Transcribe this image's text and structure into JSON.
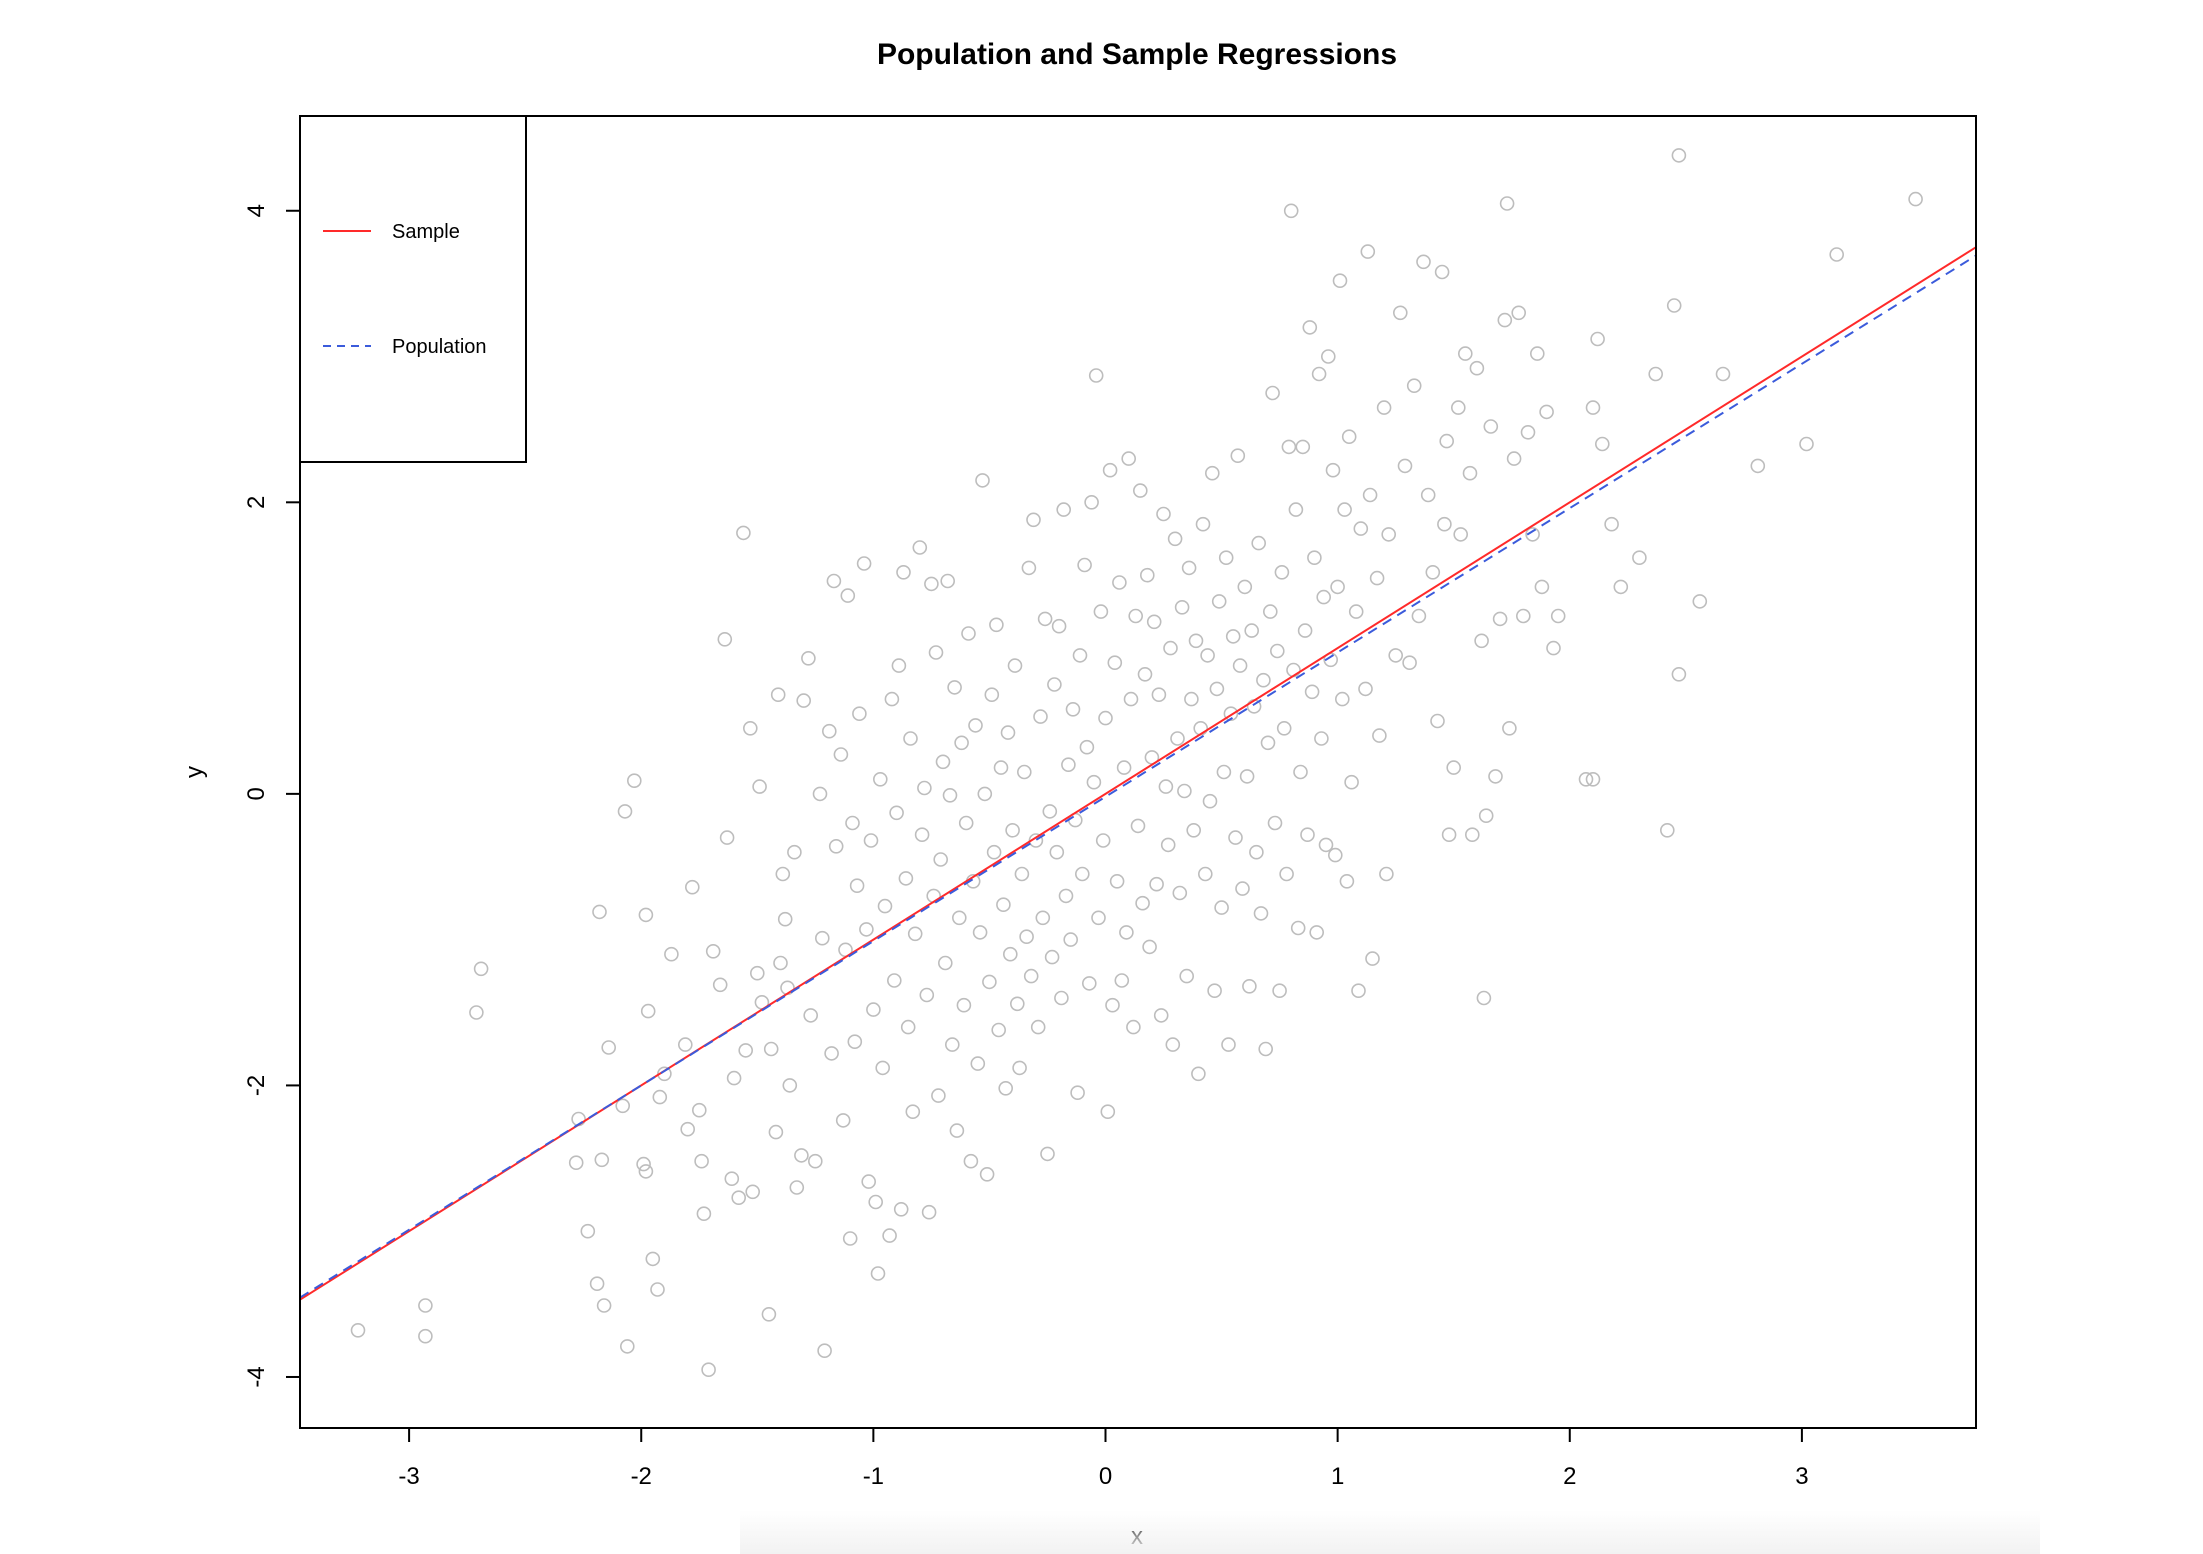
{
  "chart_data": {
    "type": "scatter",
    "title": "Population and Sample Regressions",
    "xlabel": "x",
    "ylabel": "y",
    "xlim": [
      -3.47,
      3.75
    ],
    "ylim": [
      -4.35,
      4.65
    ],
    "x_ticks": [
      -3,
      -2,
      -1,
      0,
      1,
      2,
      3
    ],
    "x_tick_labels": [
      "-3",
      "-2",
      "-1",
      "0",
      "1",
      "2",
      "3"
    ],
    "y_ticks": [
      -4,
      -2,
      0,
      2,
      4
    ],
    "y_tick_labels": [
      "-4",
      "-2",
      "0",
      "2",
      "4"
    ],
    "grid": false,
    "legend_position": "top-left",
    "point_color": "#bdbdbd",
    "points": [
      [
        -3.22,
        -3.68
      ],
      [
        -2.93,
        -3.51
      ],
      [
        -2.93,
        -3.72
      ],
      [
        -2.69,
        -1.2
      ],
      [
        -2.71,
        -1.5
      ],
      [
        -2.28,
        -2.53
      ],
      [
        -2.27,
        -2.23
      ],
      [
        -2.23,
        -3.0
      ],
      [
        -2.19,
        -3.36
      ],
      [
        -2.17,
        -2.51
      ],
      [
        -2.16,
        -3.51
      ],
      [
        -2.14,
        -1.74
      ],
      [
        -2.18,
        -0.81
      ],
      [
        -2.08,
        -2.14
      ],
      [
        -2.06,
        -3.79
      ],
      [
        -2.07,
        -0.12
      ],
      [
        -2.03,
        0.09
      ],
      [
        -1.99,
        -2.54
      ],
      [
        -1.98,
        -2.59
      ],
      [
        -1.98,
        -0.83
      ],
      [
        -1.97,
        -1.49
      ],
      [
        -1.95,
        -3.19
      ],
      [
        -1.93,
        -3.4
      ],
      [
        -1.92,
        -2.08
      ],
      [
        -1.9,
        -1.92
      ],
      [
        -1.87,
        -1.1
      ],
      [
        -1.81,
        -1.72
      ],
      [
        -1.8,
        -2.3
      ],
      [
        -1.78,
        -0.64
      ],
      [
        -1.75,
        -2.17
      ],
      [
        -1.74,
        -2.52
      ],
      [
        -1.73,
        -2.88
      ],
      [
        -1.71,
        -3.95
      ],
      [
        -1.69,
        -1.08
      ],
      [
        -1.66,
        -1.31
      ],
      [
        -1.64,
        1.06
      ],
      [
        -1.63,
        -0.3
      ],
      [
        -1.61,
        -2.64
      ],
      [
        -1.6,
        -1.95
      ],
      [
        -1.58,
        -2.77
      ],
      [
        -1.56,
        1.79
      ],
      [
        -1.55,
        -1.76
      ],
      [
        -1.53,
        0.45
      ],
      [
        -1.52,
        -2.73
      ],
      [
        -1.5,
        -1.23
      ],
      [
        -1.49,
        0.05
      ],
      [
        -1.48,
        -1.43
      ],
      [
        -1.45,
        -3.57
      ],
      [
        -1.44,
        -1.75
      ],
      [
        -1.42,
        -2.32
      ],
      [
        -1.41,
        0.68
      ],
      [
        -1.4,
        -1.16
      ],
      [
        -1.39,
        -0.55
      ],
      [
        -1.38,
        -0.86
      ],
      [
        -1.37,
        -1.33
      ],
      [
        -1.36,
        -2.0
      ],
      [
        -1.34,
        -0.4
      ],
      [
        -1.33,
        -2.7
      ],
      [
        -1.31,
        -2.48
      ],
      [
        -1.3,
        0.64
      ],
      [
        -1.28,
        0.93
      ],
      [
        -1.27,
        -1.52
      ],
      [
        -1.25,
        -2.52
      ],
      [
        -1.23,
        0.0
      ],
      [
        -1.22,
        -0.99
      ],
      [
        -1.21,
        -3.82
      ],
      [
        -1.19,
        0.43
      ],
      [
        -1.18,
        -1.78
      ],
      [
        -1.17,
        1.46
      ],
      [
        -1.16,
        -0.36
      ],
      [
        -1.14,
        0.27
      ],
      [
        -1.13,
        -2.24
      ],
      [
        -1.12,
        -1.07
      ],
      [
        -1.11,
        1.36
      ],
      [
        -1.1,
        -3.05
      ],
      [
        -1.09,
        -0.2
      ],
      [
        -1.08,
        -1.7
      ],
      [
        -1.07,
        -0.63
      ],
      [
        -1.06,
        0.55
      ],
      [
        -1.04,
        1.58
      ],
      [
        -1.03,
        -0.93
      ],
      [
        -1.02,
        -2.66
      ],
      [
        -1.01,
        -0.32
      ],
      [
        -1.0,
        -1.48
      ],
      [
        -0.99,
        -2.8
      ],
      [
        -0.98,
        -3.29
      ],
      [
        -0.97,
        0.1
      ],
      [
        -0.96,
        -1.88
      ],
      [
        -0.95,
        -0.77
      ],
      [
        -0.93,
        -3.03
      ],
      [
        -0.92,
        0.65
      ],
      [
        -0.91,
        -1.28
      ],
      [
        -0.9,
        -0.13
      ],
      [
        -0.89,
        0.88
      ],
      [
        -0.88,
        -2.85
      ],
      [
        -0.87,
        1.52
      ],
      [
        -0.86,
        -0.58
      ],
      [
        -0.85,
        -1.6
      ],
      [
        -0.84,
        0.38
      ],
      [
        -0.83,
        -2.18
      ],
      [
        -0.82,
        -0.96
      ],
      [
        -0.8,
        1.69
      ],
      [
        -0.79,
        -0.28
      ],
      [
        -0.78,
        0.04
      ],
      [
        -0.77,
        -1.38
      ],
      [
        -0.76,
        -2.87
      ],
      [
        -0.75,
        1.44
      ],
      [
        -0.74,
        -0.7
      ],
      [
        -0.73,
        0.97
      ],
      [
        -0.72,
        -2.07
      ],
      [
        -0.71,
        -0.45
      ],
      [
        -0.7,
        0.22
      ],
      [
        -0.69,
        -1.16
      ],
      [
        -0.68,
        1.46
      ],
      [
        -0.67,
        -0.01
      ],
      [
        -0.66,
        -1.72
      ],
      [
        -0.65,
        0.73
      ],
      [
        -0.64,
        -2.31
      ],
      [
        -0.63,
        -0.85
      ],
      [
        -0.62,
        0.35
      ],
      [
        -0.61,
        -1.45
      ],
      [
        -0.6,
        -0.2
      ],
      [
        -0.59,
        1.1
      ],
      [
        -0.58,
        -2.52
      ],
      [
        -0.57,
        -0.6
      ],
      [
        -0.56,
        0.47
      ],
      [
        -0.55,
        -1.85
      ],
      [
        -0.54,
        -0.95
      ],
      [
        -0.53,
        2.15
      ],
      [
        -0.52,
        0.0
      ],
      [
        -0.51,
        -2.61
      ],
      [
        -0.5,
        -1.29
      ],
      [
        -0.49,
        0.68
      ],
      [
        -0.48,
        -0.4
      ],
      [
        -0.47,
        1.16
      ],
      [
        -0.46,
        -1.62
      ],
      [
        -0.45,
        0.18
      ],
      [
        -0.44,
        -0.76
      ],
      [
        -0.43,
        -2.02
      ],
      [
        -0.42,
        0.42
      ],
      [
        -0.41,
        -1.1
      ],
      [
        -0.4,
        -0.25
      ],
      [
        -0.39,
        0.88
      ],
      [
        -0.38,
        -1.44
      ],
      [
        -0.37,
        -1.88
      ],
      [
        -0.36,
        -0.55
      ],
      [
        -0.35,
        0.15
      ],
      [
        -0.34,
        -0.98
      ],
      [
        -0.33,
        1.55
      ],
      [
        -0.32,
        -1.25
      ],
      [
        -0.31,
        1.88
      ],
      [
        -0.3,
        -0.32
      ],
      [
        -0.29,
        -1.6
      ],
      [
        -0.28,
        0.53
      ],
      [
        -0.27,
        -0.85
      ],
      [
        -0.26,
        1.2
      ],
      [
        -0.25,
        -2.47
      ],
      [
        -0.24,
        -0.12
      ],
      [
        -0.23,
        -1.12
      ],
      [
        -0.22,
        0.75
      ],
      [
        -0.21,
        -0.4
      ],
      [
        -0.2,
        1.15
      ],
      [
        -0.19,
        -1.4
      ],
      [
        -0.18,
        1.95
      ],
      [
        -0.17,
        -0.7
      ],
      [
        -0.16,
        0.2
      ],
      [
        -0.15,
        -1.0
      ],
      [
        -0.14,
        0.58
      ],
      [
        -0.13,
        -0.18
      ],
      [
        -0.12,
        -2.05
      ],
      [
        -0.11,
        0.95
      ],
      [
        -0.1,
        -0.55
      ],
      [
        -0.09,
        1.57
      ],
      [
        -0.08,
        0.32
      ],
      [
        -0.07,
        -1.3
      ],
      [
        -0.06,
        2.0
      ],
      [
        -0.05,
        0.08
      ],
      [
        -0.04,
        2.87
      ],
      [
        -0.03,
        -0.85
      ],
      [
        -0.02,
        1.25
      ],
      [
        -0.01,
        -0.32
      ],
      [
        0.0,
        0.52
      ],
      [
        0.01,
        -2.18
      ],
      [
        0.02,
        2.22
      ],
      [
        0.03,
        -1.45
      ],
      [
        0.04,
        0.9
      ],
      [
        0.05,
        -0.6
      ],
      [
        0.06,
        1.45
      ],
      [
        0.07,
        -1.28
      ],
      [
        0.08,
        0.18
      ],
      [
        0.09,
        -0.95
      ],
      [
        0.1,
        2.3
      ],
      [
        0.11,
        0.65
      ],
      [
        0.12,
        -1.6
      ],
      [
        0.13,
        1.22
      ],
      [
        0.14,
        -0.22
      ],
      [
        0.15,
        2.08
      ],
      [
        0.16,
        -0.75
      ],
      [
        0.17,
        0.82
      ],
      [
        0.18,
        1.5
      ],
      [
        0.19,
        -1.05
      ],
      [
        0.2,
        0.25
      ],
      [
        0.21,
        1.18
      ],
      [
        0.22,
        -0.62
      ],
      [
        0.23,
        0.68
      ],
      [
        0.24,
        -1.52
      ],
      [
        0.25,
        1.92
      ],
      [
        0.26,
        0.05
      ],
      [
        0.27,
        -0.35
      ],
      [
        0.28,
        1.0
      ],
      [
        0.29,
        -1.72
      ],
      [
        0.3,
        1.75
      ],
      [
        0.31,
        0.38
      ],
      [
        0.32,
        -0.68
      ],
      [
        0.33,
        1.28
      ],
      [
        0.34,
        0.02
      ],
      [
        0.35,
        -1.25
      ],
      [
        0.36,
        1.55
      ],
      [
        0.37,
        0.65
      ],
      [
        0.38,
        -0.25
      ],
      [
        0.39,
        1.05
      ],
      [
        0.4,
        -1.92
      ],
      [
        0.41,
        0.45
      ],
      [
        0.42,
        1.85
      ],
      [
        0.43,
        -0.55
      ],
      [
        0.44,
        0.95
      ],
      [
        0.45,
        -0.05
      ],
      [
        0.46,
        2.2
      ],
      [
        0.47,
        -1.35
      ],
      [
        0.48,
        0.72
      ],
      [
        0.49,
        1.32
      ],
      [
        0.5,
        -0.78
      ],
      [
        0.51,
        0.15
      ],
      [
        0.52,
        1.62
      ],
      [
        0.53,
        -1.72
      ],
      [
        0.54,
        0.55
      ],
      [
        0.55,
        1.08
      ],
      [
        0.56,
        -0.3
      ],
      [
        0.57,
        2.32
      ],
      [
        0.58,
        0.88
      ],
      [
        0.59,
        -0.65
      ],
      [
        0.6,
        1.42
      ],
      [
        0.61,
        0.12
      ],
      [
        0.62,
        -1.32
      ],
      [
        0.63,
        1.12
      ],
      [
        0.64,
        0.6
      ],
      [
        0.65,
        -0.4
      ],
      [
        0.66,
        1.72
      ],
      [
        0.67,
        -0.82
      ],
      [
        0.68,
        0.78
      ],
      [
        0.69,
        -1.75
      ],
      [
        0.7,
        0.35
      ],
      [
        0.71,
        1.25
      ],
      [
        0.72,
        2.75
      ],
      [
        0.73,
        -0.2
      ],
      [
        0.74,
        0.98
      ],
      [
        0.75,
        -1.35
      ],
      [
        0.76,
        1.52
      ],
      [
        0.77,
        0.45
      ],
      [
        0.78,
        -0.55
      ],
      [
        0.79,
        2.38
      ],
      [
        0.8,
        4.0
      ],
      [
        0.81,
        0.85
      ],
      [
        0.82,
        1.95
      ],
      [
        0.83,
        -0.92
      ],
      [
        0.84,
        0.15
      ],
      [
        0.85,
        2.38
      ],
      [
        0.86,
        1.12
      ],
      [
        0.87,
        -0.28
      ],
      [
        0.88,
        3.2
      ],
      [
        0.89,
        0.7
      ],
      [
        0.9,
        1.62
      ],
      [
        0.91,
        -0.95
      ],
      [
        0.92,
        2.88
      ],
      [
        0.93,
        0.38
      ],
      [
        0.94,
        1.35
      ],
      [
        0.95,
        -0.35
      ],
      [
        0.96,
        3.0
      ],
      [
        0.97,
        0.92
      ],
      [
        0.98,
        2.22
      ],
      [
        0.99,
        -0.42
      ],
      [
        1.0,
        1.42
      ],
      [
        1.01,
        3.52
      ],
      [
        1.02,
        0.65
      ],
      [
        1.03,
        1.95
      ],
      [
        1.04,
        -0.6
      ],
      [
        1.05,
        2.45
      ],
      [
        1.06,
        0.08
      ],
      [
        1.08,
        1.25
      ],
      [
        1.09,
        -1.35
      ],
      [
        1.1,
        1.82
      ],
      [
        1.12,
        0.72
      ],
      [
        1.13,
        3.72
      ],
      [
        1.14,
        2.05
      ],
      [
        1.15,
        -1.13
      ],
      [
        1.17,
        1.48
      ],
      [
        1.18,
        0.4
      ],
      [
        1.2,
        2.65
      ],
      [
        1.21,
        -0.55
      ],
      [
        1.22,
        1.78
      ],
      [
        1.25,
        0.95
      ],
      [
        1.27,
        3.3
      ],
      [
        1.29,
        2.25
      ],
      [
        1.31,
        0.9
      ],
      [
        1.33,
        2.8
      ],
      [
        1.35,
        1.22
      ],
      [
        1.37,
        3.65
      ],
      [
        1.39,
        2.05
      ],
      [
        1.41,
        1.52
      ],
      [
        1.43,
        0.5
      ],
      [
        1.45,
        3.58
      ],
      [
        1.46,
        1.85
      ],
      [
        1.47,
        2.42
      ],
      [
        1.48,
        -0.28
      ],
      [
        1.5,
        0.18
      ],
      [
        1.52,
        2.65
      ],
      [
        1.53,
        1.78
      ],
      [
        1.55,
        3.02
      ],
      [
        1.57,
        2.2
      ],
      [
        1.58,
        -0.28
      ],
      [
        1.6,
        2.92
      ],
      [
        1.62,
        1.05
      ],
      [
        1.63,
        -1.4
      ],
      [
        1.64,
        -0.15
      ],
      [
        1.66,
        2.52
      ],
      [
        1.68,
        0.12
      ],
      [
        1.7,
        1.2
      ],
      [
        1.72,
        3.25
      ],
      [
        1.73,
        4.05
      ],
      [
        1.74,
        0.45
      ],
      [
        1.76,
        2.3
      ],
      [
        1.78,
        3.3
      ],
      [
        1.8,
        1.22
      ],
      [
        1.82,
        2.48
      ],
      [
        1.84,
        1.78
      ],
      [
        1.86,
        3.02
      ],
      [
        1.88,
        1.42
      ],
      [
        1.9,
        2.62
      ],
      [
        1.93,
        1.0
      ],
      [
        1.95,
        1.22
      ],
      [
        2.07,
        0.1
      ],
      [
        2.1,
        0.1
      ],
      [
        2.1,
        2.65
      ],
      [
        2.12,
        3.12
      ],
      [
        2.14,
        2.4
      ],
      [
        2.18,
        1.85
      ],
      [
        2.22,
        1.42
      ],
      [
        2.3,
        1.62
      ],
      [
        2.37,
        2.88
      ],
      [
        2.42,
        -0.25
      ],
      [
        2.45,
        3.35
      ],
      [
        2.47,
        4.38
      ],
      [
        2.47,
        0.82
      ],
      [
        2.56,
        1.32
      ],
      [
        2.66,
        2.88
      ],
      [
        2.81,
        2.25
      ],
      [
        3.02,
        2.4
      ],
      [
        3.15,
        3.7
      ],
      [
        3.49,
        4.08
      ]
    ],
    "series": [
      {
        "name": "Sample",
        "type": "line",
        "style": "solid",
        "color": "#ff2a2a",
        "intercept": 0.0,
        "slope": 1.0
      },
      {
        "name": "Population",
        "type": "line",
        "style": "dashed",
        "color": "#3b5bdb",
        "intercept": -0.02,
        "slope": 0.99
      }
    ]
  }
}
